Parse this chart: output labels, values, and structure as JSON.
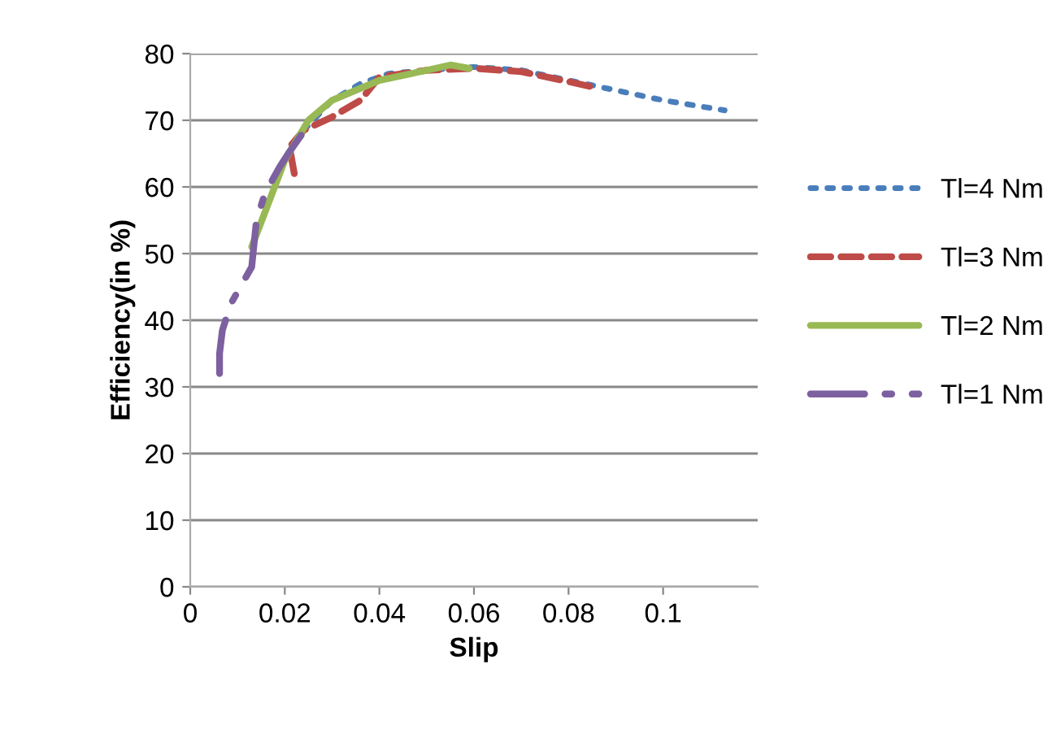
{
  "chart_data": {
    "type": "line",
    "xlabel": "Slip",
    "ylabel": "Efficiency(in %)",
    "xlim": [
      0,
      0.12
    ],
    "xticks": [
      0,
      0.02,
      0.04,
      0.06,
      0.08,
      0.1
    ],
    "ylim": [
      0,
      80
    ],
    "yticks": [
      0,
      10,
      20,
      30,
      40,
      50,
      60,
      70,
      80
    ],
    "grid": "y",
    "legend": "right",
    "marker": "none",
    "series": [
      {
        "name": "Tl=4 Nm",
        "color": "#4a7ebb",
        "line_style": "dotted",
        "x": [
          0.024,
          0.03,
          0.036,
          0.042,
          0.05,
          0.06,
          0.07,
          0.08,
          0.09,
          0.1,
          0.113
        ],
        "values": [
          68.5,
          73,
          75.5,
          77,
          77.5,
          78,
          77.5,
          76,
          74.5,
          73,
          71.5
        ]
      },
      {
        "name": "Tl=3 Nm",
        "color": "#be4b48",
        "line_style": "dashed",
        "x": [
          0.022,
          0.021,
          0.024,
          0.03,
          0.036,
          0.04,
          0.05,
          0.06,
          0.07,
          0.08,
          0.085
        ],
        "values": [
          62,
          66,
          68.5,
          70.5,
          73,
          76.5,
          77.5,
          77.8,
          77.3,
          75.8,
          75
        ]
      },
      {
        "name": "Tl=2 Nm",
        "color": "#98b954",
        "line_style": "solid",
        "x": [
          0.013,
          0.02,
          0.025,
          0.03,
          0.04,
          0.05,
          0.055,
          0.059
        ],
        "values": [
          51,
          64,
          70,
          73,
          76,
          77.5,
          78.3,
          77.8
        ]
      },
      {
        "name": "Tl=1 Nm",
        "color": "#7d60a0",
        "line_style": "dashdot",
        "x": [
          0.0062,
          0.0062,
          0.0068,
          0.0086,
          0.0106,
          0.013,
          0.014,
          0.0158,
          0.0189,
          0.021,
          0.024
        ],
        "values": [
          32,
          35,
          38.5,
          42.5,
          45,
          48,
          55,
          59,
          63,
          65.3,
          68.3
        ]
      }
    ]
  }
}
